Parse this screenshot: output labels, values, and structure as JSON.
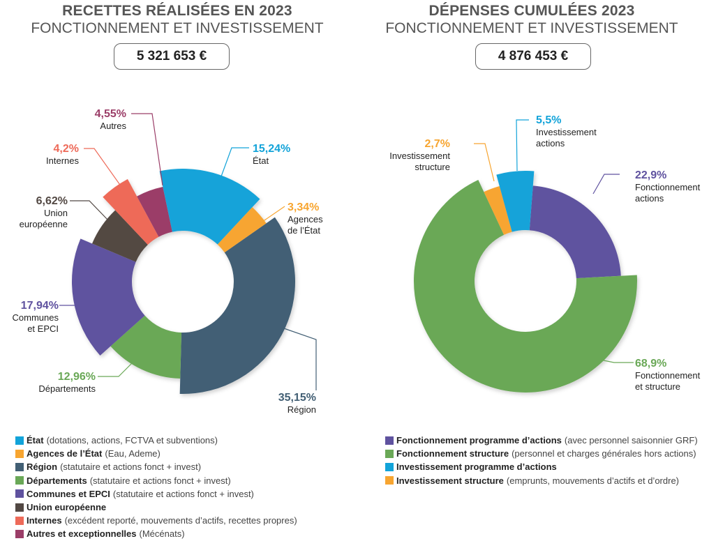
{
  "colors": {
    "etat": "#12a3d9",
    "agences": "#f7a530",
    "region": "#425f74",
    "departements": "#6aa857",
    "communes": "#5f529f",
    "ue": "#524843",
    "internes": "#ee6a59",
    "autres": "#9b3e68",
    "title": "#555555"
  },
  "recettes": {
    "title": "RECETTES RÉALISÉES EN 2023",
    "subtitle": "FONCTIONNEMENT ET INVESTISSEMENT",
    "total": "5 321 653 €",
    "legend": [
      {
        "key": "etat",
        "strong": "État",
        "detail": "(dotations, actions, FCTVA et subventions)"
      },
      {
        "key": "agences",
        "strong": "Agences de l’État",
        "detail": "(Eau, Ademe)"
      },
      {
        "key": "region",
        "strong": "Région",
        "detail": "(statutaire et actions fonct + invest)"
      },
      {
        "key": "departements",
        "strong": "Départements",
        "detail": "(statutaire et actions fonct + invest)"
      },
      {
        "key": "communes",
        "strong": "Communes et EPCI",
        "detail": "(statutaire et actions fonct + invest)"
      },
      {
        "key": "ue",
        "strong": "Union européenne",
        "detail": ""
      },
      {
        "key": "internes",
        "strong": "Internes",
        "detail": "(excédent reporté, mouvements d’actifs, recettes propres)"
      },
      {
        "key": "autres",
        "strong": "Autres et exceptionnelles",
        "detail": "(Mécénats)"
      }
    ]
  },
  "depenses": {
    "title": "DÉPENSES CUMULÉES 2023",
    "subtitle": "FONCTIONNEMENT ET INVESTISSEMENT",
    "total": "4 876 453 €",
    "legend": [
      {
        "color": "#5f529f",
        "strong": "Fonctionnement programme d’actions",
        "detail": "(avec personnel saisonnier GRF)"
      },
      {
        "color": "#6aa857",
        "strong": "Fonctionnement structure",
        "detail": "(personnel et charges générales hors actions)"
      },
      {
        "color": "#12a3d9",
        "strong": "Investissement programme d’actions",
        "detail": ""
      },
      {
        "color": "#f7a530",
        "strong": "Investissement structure",
        "detail": "(emprunts, mouvements d’actifs et d’ordre)"
      }
    ]
  },
  "chart_data": [
    {
      "type": "pie",
      "variant": "donut",
      "title": "RECETTES RÉALISÉES EN 2023 — FONCTIONNEMENT ET INVESTISSEMENT",
      "total": "5 321 653 €",
      "unit": "%",
      "slices": [
        {
          "name": "Région",
          "label": [
            "Région"
          ],
          "value": 35.15,
          "pct_text": "35,15%",
          "color": "#425f74"
        },
        {
          "name": "Départements",
          "label": [
            "Départements"
          ],
          "value": 12.96,
          "pct_text": "12,96%",
          "color": "#6aa857"
        },
        {
          "name": "Communes et EPCI",
          "label": [
            "Communes",
            "et EPCI"
          ],
          "value": 17.94,
          "pct_text": "17,94%",
          "color": "#5f529f"
        },
        {
          "name": "Union européenne",
          "label": [
            "Union",
            "européenne"
          ],
          "value": 6.62,
          "pct_text": "6,62%",
          "color": "#524843"
        },
        {
          "name": "Internes",
          "label": [
            "Internes"
          ],
          "value": 4.2,
          "pct_text": "4,2%",
          "color": "#ee6a59"
        },
        {
          "name": "Autres",
          "label": [
            "Autres"
          ],
          "value": 4.55,
          "pct_text": "4,55%",
          "color": "#9b3e68"
        },
        {
          "name": "État",
          "label": [
            "État"
          ],
          "value": 15.24,
          "pct_text": "15,24%",
          "color": "#12a3d9"
        },
        {
          "name": "Agences de l’État",
          "label": [
            "Agences",
            "de l’État"
          ],
          "value": 3.34,
          "pct_text": "3,34%",
          "color": "#f7a530"
        }
      ]
    },
    {
      "type": "pie",
      "variant": "donut",
      "title": "DÉPENSES CUMULÉES 2023 — FONCTIONNEMENT ET INVESTISSEMENT",
      "total": "4 876 453 €",
      "unit": "%",
      "slices": [
        {
          "name": "Fonctionnement actions",
          "label": [
            "Fonctionnement",
            "actions"
          ],
          "value": 22.9,
          "pct_text": "22,9%",
          "color": "#5f529f"
        },
        {
          "name": "Fonctionnement et structure",
          "label": [
            "Fonctionnement",
            "et structure"
          ],
          "value": 68.9,
          "pct_text": "68,9%",
          "color": "#6aa857"
        },
        {
          "name": "Investissement structure",
          "label": [
            "Investissement",
            "structure"
          ],
          "value": 2.7,
          "pct_text": "2,7%",
          "color": "#f7a530"
        },
        {
          "name": "Investissement actions",
          "label": [
            "Investissement",
            "actions"
          ],
          "value": 5.5,
          "pct_text": "5,5%",
          "color": "#12a3d9"
        }
      ]
    }
  ]
}
